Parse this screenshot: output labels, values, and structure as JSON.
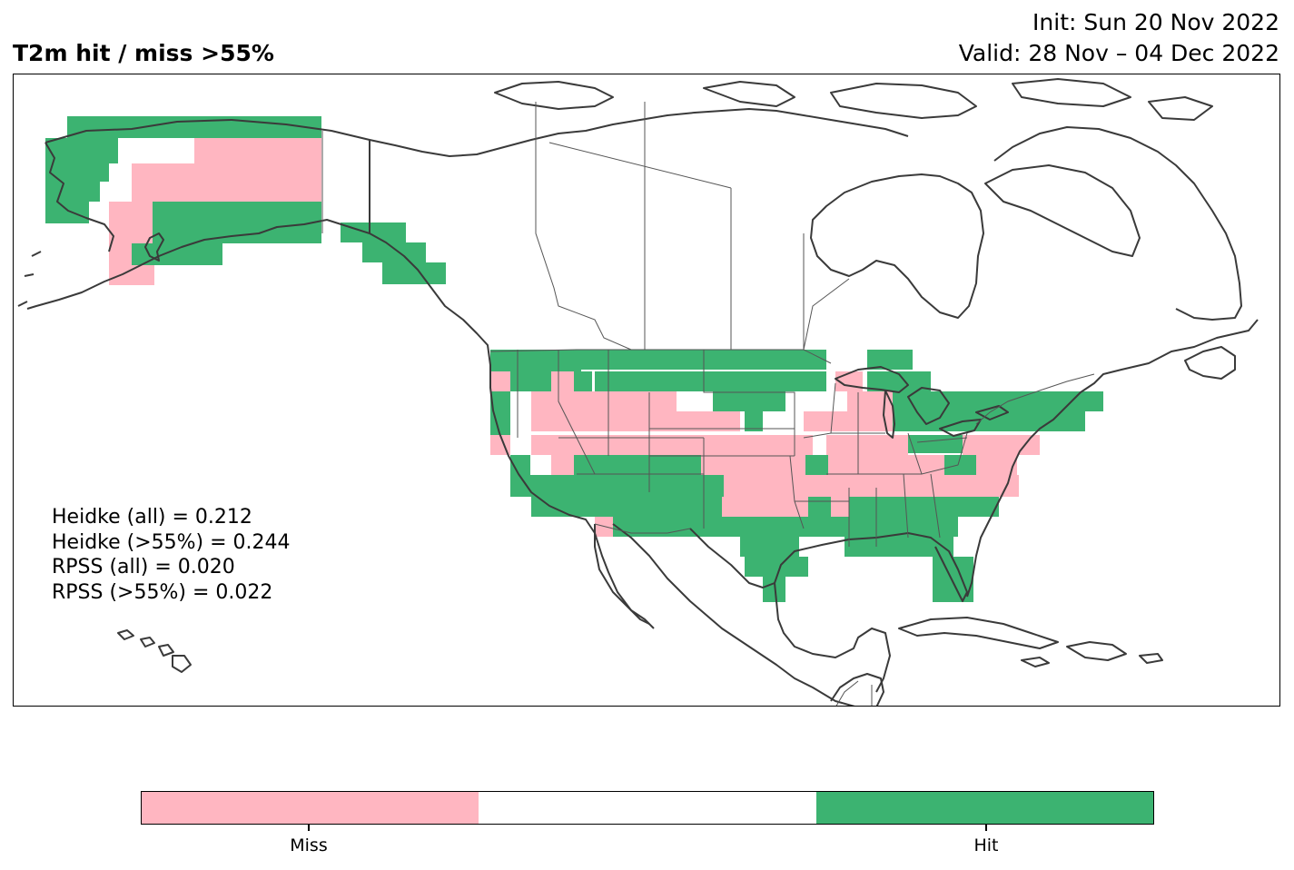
{
  "header": {
    "title": "T2m hit / miss  >55%",
    "init": "Init: Sun 20 Nov 2022",
    "valid": "Valid: 28 Nov – 04 Dec 2022"
  },
  "stats": [
    "Heidke (all) = 0.212",
    "Heidke (>55%) = 0.244",
    "RPSS (all) = 0.020",
    "RPSS (>55%) = 0.022"
  ],
  "colors": {
    "miss": "#ffb6c1",
    "neutral": "#ffffff",
    "hit": "#3cb371",
    "coast": "#3a3a3a",
    "border": "#555555"
  },
  "colorbar": {
    "segments": [
      "miss",
      "neutral",
      "hit"
    ],
    "labels": [
      "Miss",
      "Hit"
    ]
  }
}
